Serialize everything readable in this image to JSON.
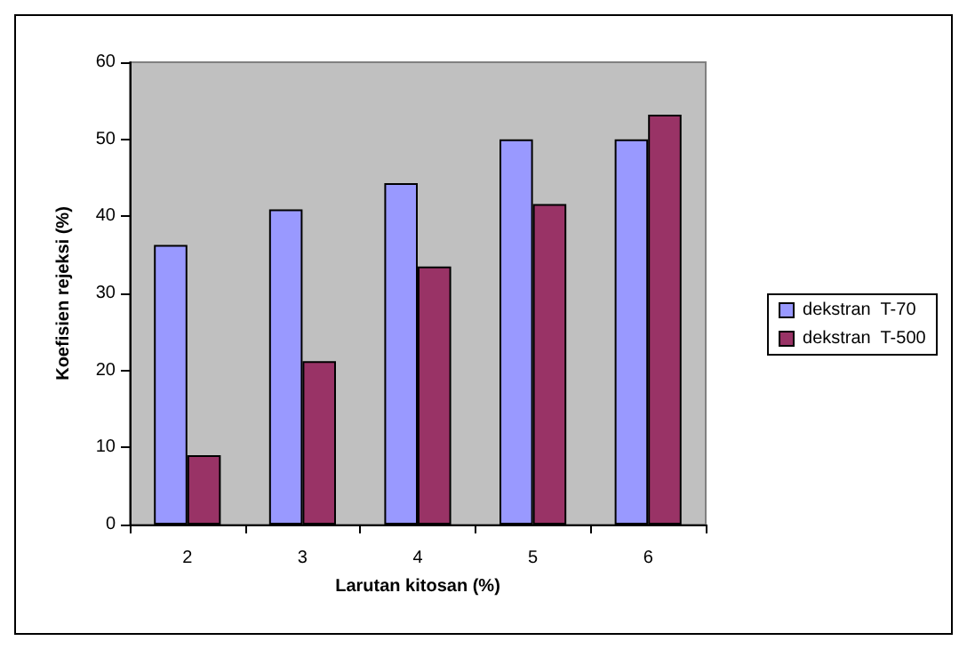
{
  "chart_data": {
    "type": "bar",
    "xlabel": "Larutan kitosan (%)",
    "ylabel": "Koefisien rejeksi (%)",
    "categories": [
      "2",
      "3",
      "4",
      "5",
      "6"
    ],
    "series": [
      {
        "name": "dekstran  T-70",
        "color": "#9999ff",
        "values": [
          36.3,
          40.9,
          44.3,
          50,
          50
        ]
      },
      {
        "name": "dekstran  T-500",
        "color": "#993366",
        "values": [
          9,
          21.2,
          33.5,
          41.6,
          53.2
        ]
      }
    ],
    "ylim": [
      0,
      60
    ],
    "yticks": [
      0,
      10,
      20,
      30,
      40,
      50,
      60
    ],
    "grid": false,
    "legend": "right"
  }
}
